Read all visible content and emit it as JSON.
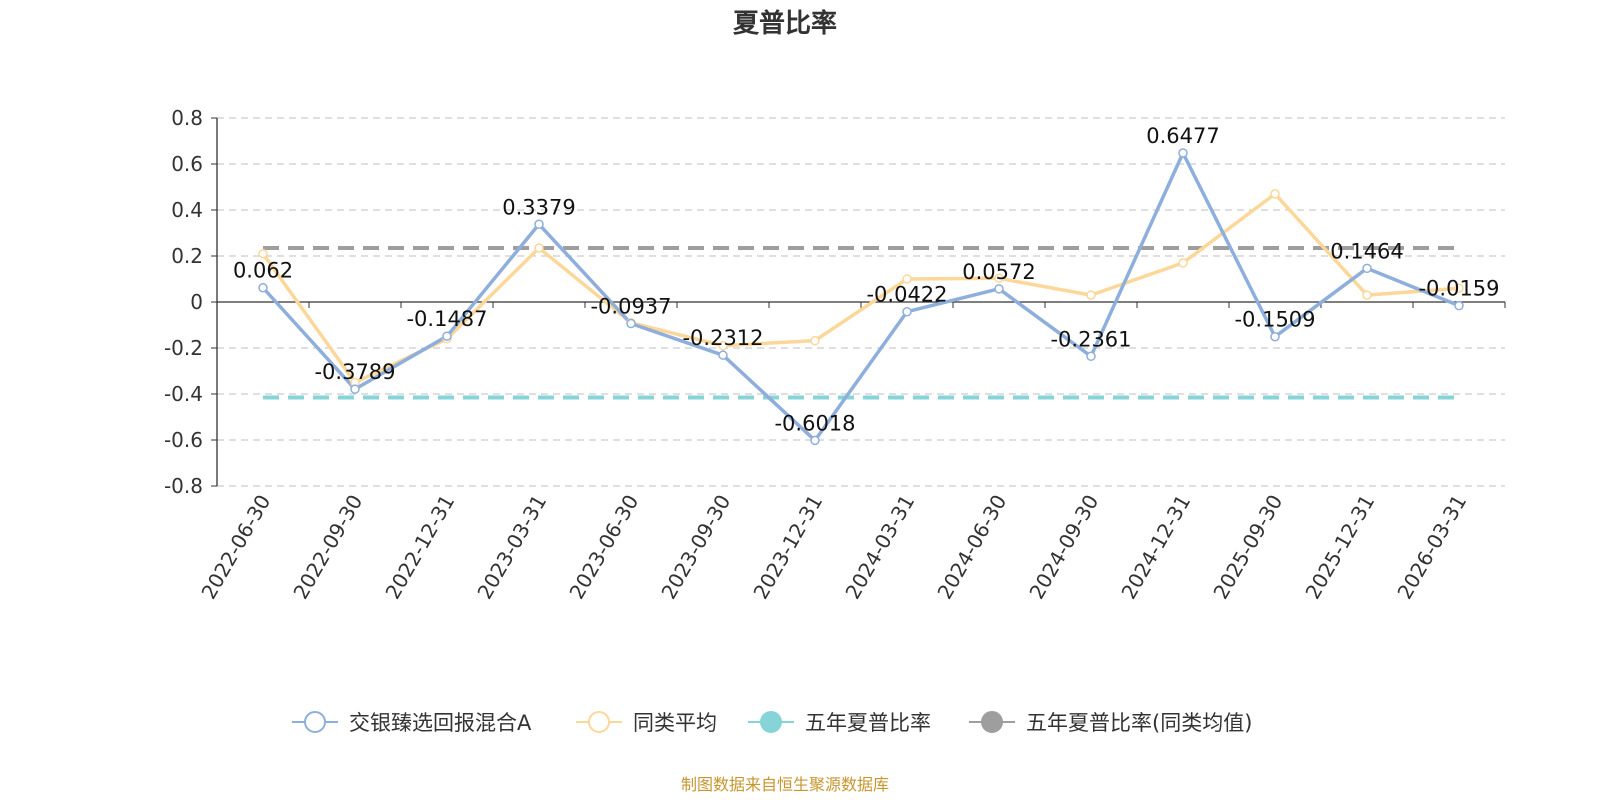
{
  "chart_data": {
    "type": "line",
    "title": "夏普比率",
    "categories": [
      "2022-06-30",
      "2022-09-30",
      "2022-12-31",
      "2023-03-31",
      "2023-06-30",
      "2023-09-30",
      "2023-12-31",
      "2024-03-31",
      "2024-06-30",
      "2024-09-30",
      "2024-12-31",
      "2025-09-30",
      "2025-12-31",
      "2026-03-31"
    ],
    "ylim": [
      -0.8,
      0.8
    ],
    "yticks": [
      "0.8",
      "0.6",
      "0.4",
      "0.2",
      "0",
      "-0.2",
      "-0.4",
      "-0.6",
      "-0.8"
    ],
    "grid": true,
    "legend_position": "bottom",
    "series": [
      {
        "name": "交银臻选回报混合A",
        "color": "#8eaedb",
        "values": [
          0.062,
          -0.3789,
          -0.1487,
          0.3379,
          -0.0937,
          -0.2312,
          -0.6018,
          -0.0422,
          0.0572,
          -0.2361,
          0.6477,
          -0.1509,
          0.1464,
          -0.0159
        ],
        "labels": [
          "0.062",
          "-0.3789",
          "-0.1487",
          "0.3379",
          "-0.0937",
          "-0.2312",
          "-0.6018",
          "-0.0422",
          "0.0572",
          "-0.2361",
          "0.6477",
          "-0.1509",
          "0.1464",
          "-0.0159"
        ]
      },
      {
        "name": "同类平均",
        "color": "#fcd79a",
        "values": [
          0.21,
          -0.35,
          -0.16,
          0.235,
          -0.09,
          -0.19,
          -0.168,
          0.1,
          0.103,
          0.03,
          0.17,
          0.47,
          0.03,
          0.06
        ]
      },
      {
        "name": "五年夏普比率",
        "color": "#86d4d8",
        "constant": -0.415
      },
      {
        "name": "五年夏普比率(同类均值)",
        "color": "#9e9e9e",
        "constant": 0.235
      }
    ],
    "source": "制图数据来自恒生聚源数据库"
  }
}
